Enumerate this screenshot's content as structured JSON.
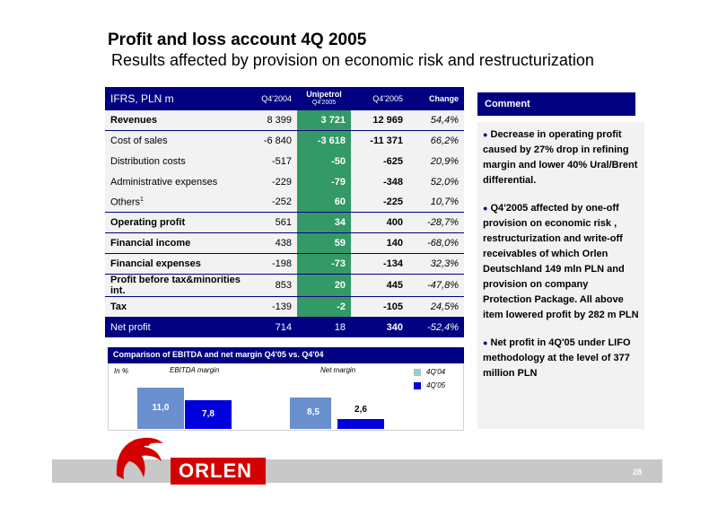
{
  "header": {
    "title": "Profit and loss account 4Q 2005",
    "subtitle": "Results affected by provision on economic risk and restructurization"
  },
  "table": {
    "col_label": "IFRS, PLN m",
    "col_q4_2004": "Q4'2004",
    "col_unipetrol": "Unipetrol",
    "col_unipetrol_sub": "Q4'2005",
    "col_q4_2005": "Q4'2005",
    "col_change": "Change",
    "rows": [
      {
        "label": "Revenues",
        "q4_2004": "8 399",
        "unipetrol": "3 721",
        "q4_2005": "12 969",
        "change": "54,4%"
      },
      {
        "label": "Cost of sales",
        "q4_2004": "-6 840",
        "unipetrol": "-3 618",
        "q4_2005": "-11 371",
        "change": "66,2%"
      },
      {
        "label": "Distribution costs",
        "q4_2004": "-517",
        "unipetrol": "-50",
        "q4_2005": "-625",
        "change": "20,9%"
      },
      {
        "label": "Administrative expenses",
        "q4_2004": "-229",
        "unipetrol": "-79",
        "q4_2005": "-348",
        "change": "52,0%"
      },
      {
        "label": "Others",
        "label_sup": "1",
        "q4_2004": "-252",
        "unipetrol": "60",
        "q4_2005": "-225",
        "change": "10,7%"
      },
      {
        "label": "Operating profit",
        "q4_2004": "561",
        "unipetrol": "34",
        "q4_2005": "400",
        "change": "-28,7%"
      },
      {
        "label": "Financial income",
        "q4_2004": "438",
        "unipetrol": "59",
        "q4_2005": "140",
        "change": "-68,0%"
      },
      {
        "label": "Financial expenses",
        "q4_2004": "-198",
        "unipetrol": "-73",
        "q4_2005": "-134",
        "change": "32,3%"
      },
      {
        "label": "Profit before tax&minorities int.",
        "q4_2004": "853",
        "unipetrol": "20",
        "q4_2005": "445",
        "change": "-47,8%"
      },
      {
        "label": "Tax",
        "q4_2004": "-139",
        "unipetrol": "-2",
        "q4_2005": "-105",
        "change": "24,5%"
      },
      {
        "label": "Net profit",
        "q4_2004": "714",
        "unipetrol": "18",
        "q4_2005": "340",
        "change": "-52,4%"
      }
    ]
  },
  "comment": {
    "title": "Comment",
    "bullets": [
      "Decrease in operating profit caused by 27% drop in refining margin and lower 40% Ural/Brent differential.",
      "Q4'2005 affected by one-off provision on economic risk , restructurization and write-off receivables of which Orlen Deutschland 149 mln PLN and provision on company Protection Package. All above item lowered profit by 282 m PLN",
      "Net profit in 4Q'05 under LIFO methodology at the level of 377 million PLN"
    ]
  },
  "chart_data": {
    "type": "bar",
    "title": "Comparison of EBITDA and net margin Q4'05 vs. Q4'04",
    "unit_label": "In %",
    "categories": [
      "EBITDA margin",
      "Net margin"
    ],
    "series": [
      {
        "name": "4Q'04",
        "values": [
          11.0,
          8.5
        ],
        "labels": [
          "11,0",
          "8,5"
        ]
      },
      {
        "name": "4Q'05",
        "values": [
          7.8,
          2.6
        ],
        "labels": [
          "7,8",
          "2,6"
        ]
      }
    ],
    "ylim": [
      0,
      12
    ],
    "colors": {
      "4Q'04": "#6a8fce",
      "4Q'05": "#0000dd"
    },
    "legend_colors": {
      "4Q'04": "#99cccc",
      "4Q'05": "#0000dd"
    }
  },
  "footer": {
    "logo_text": "ORLEN",
    "page_number": "28"
  }
}
